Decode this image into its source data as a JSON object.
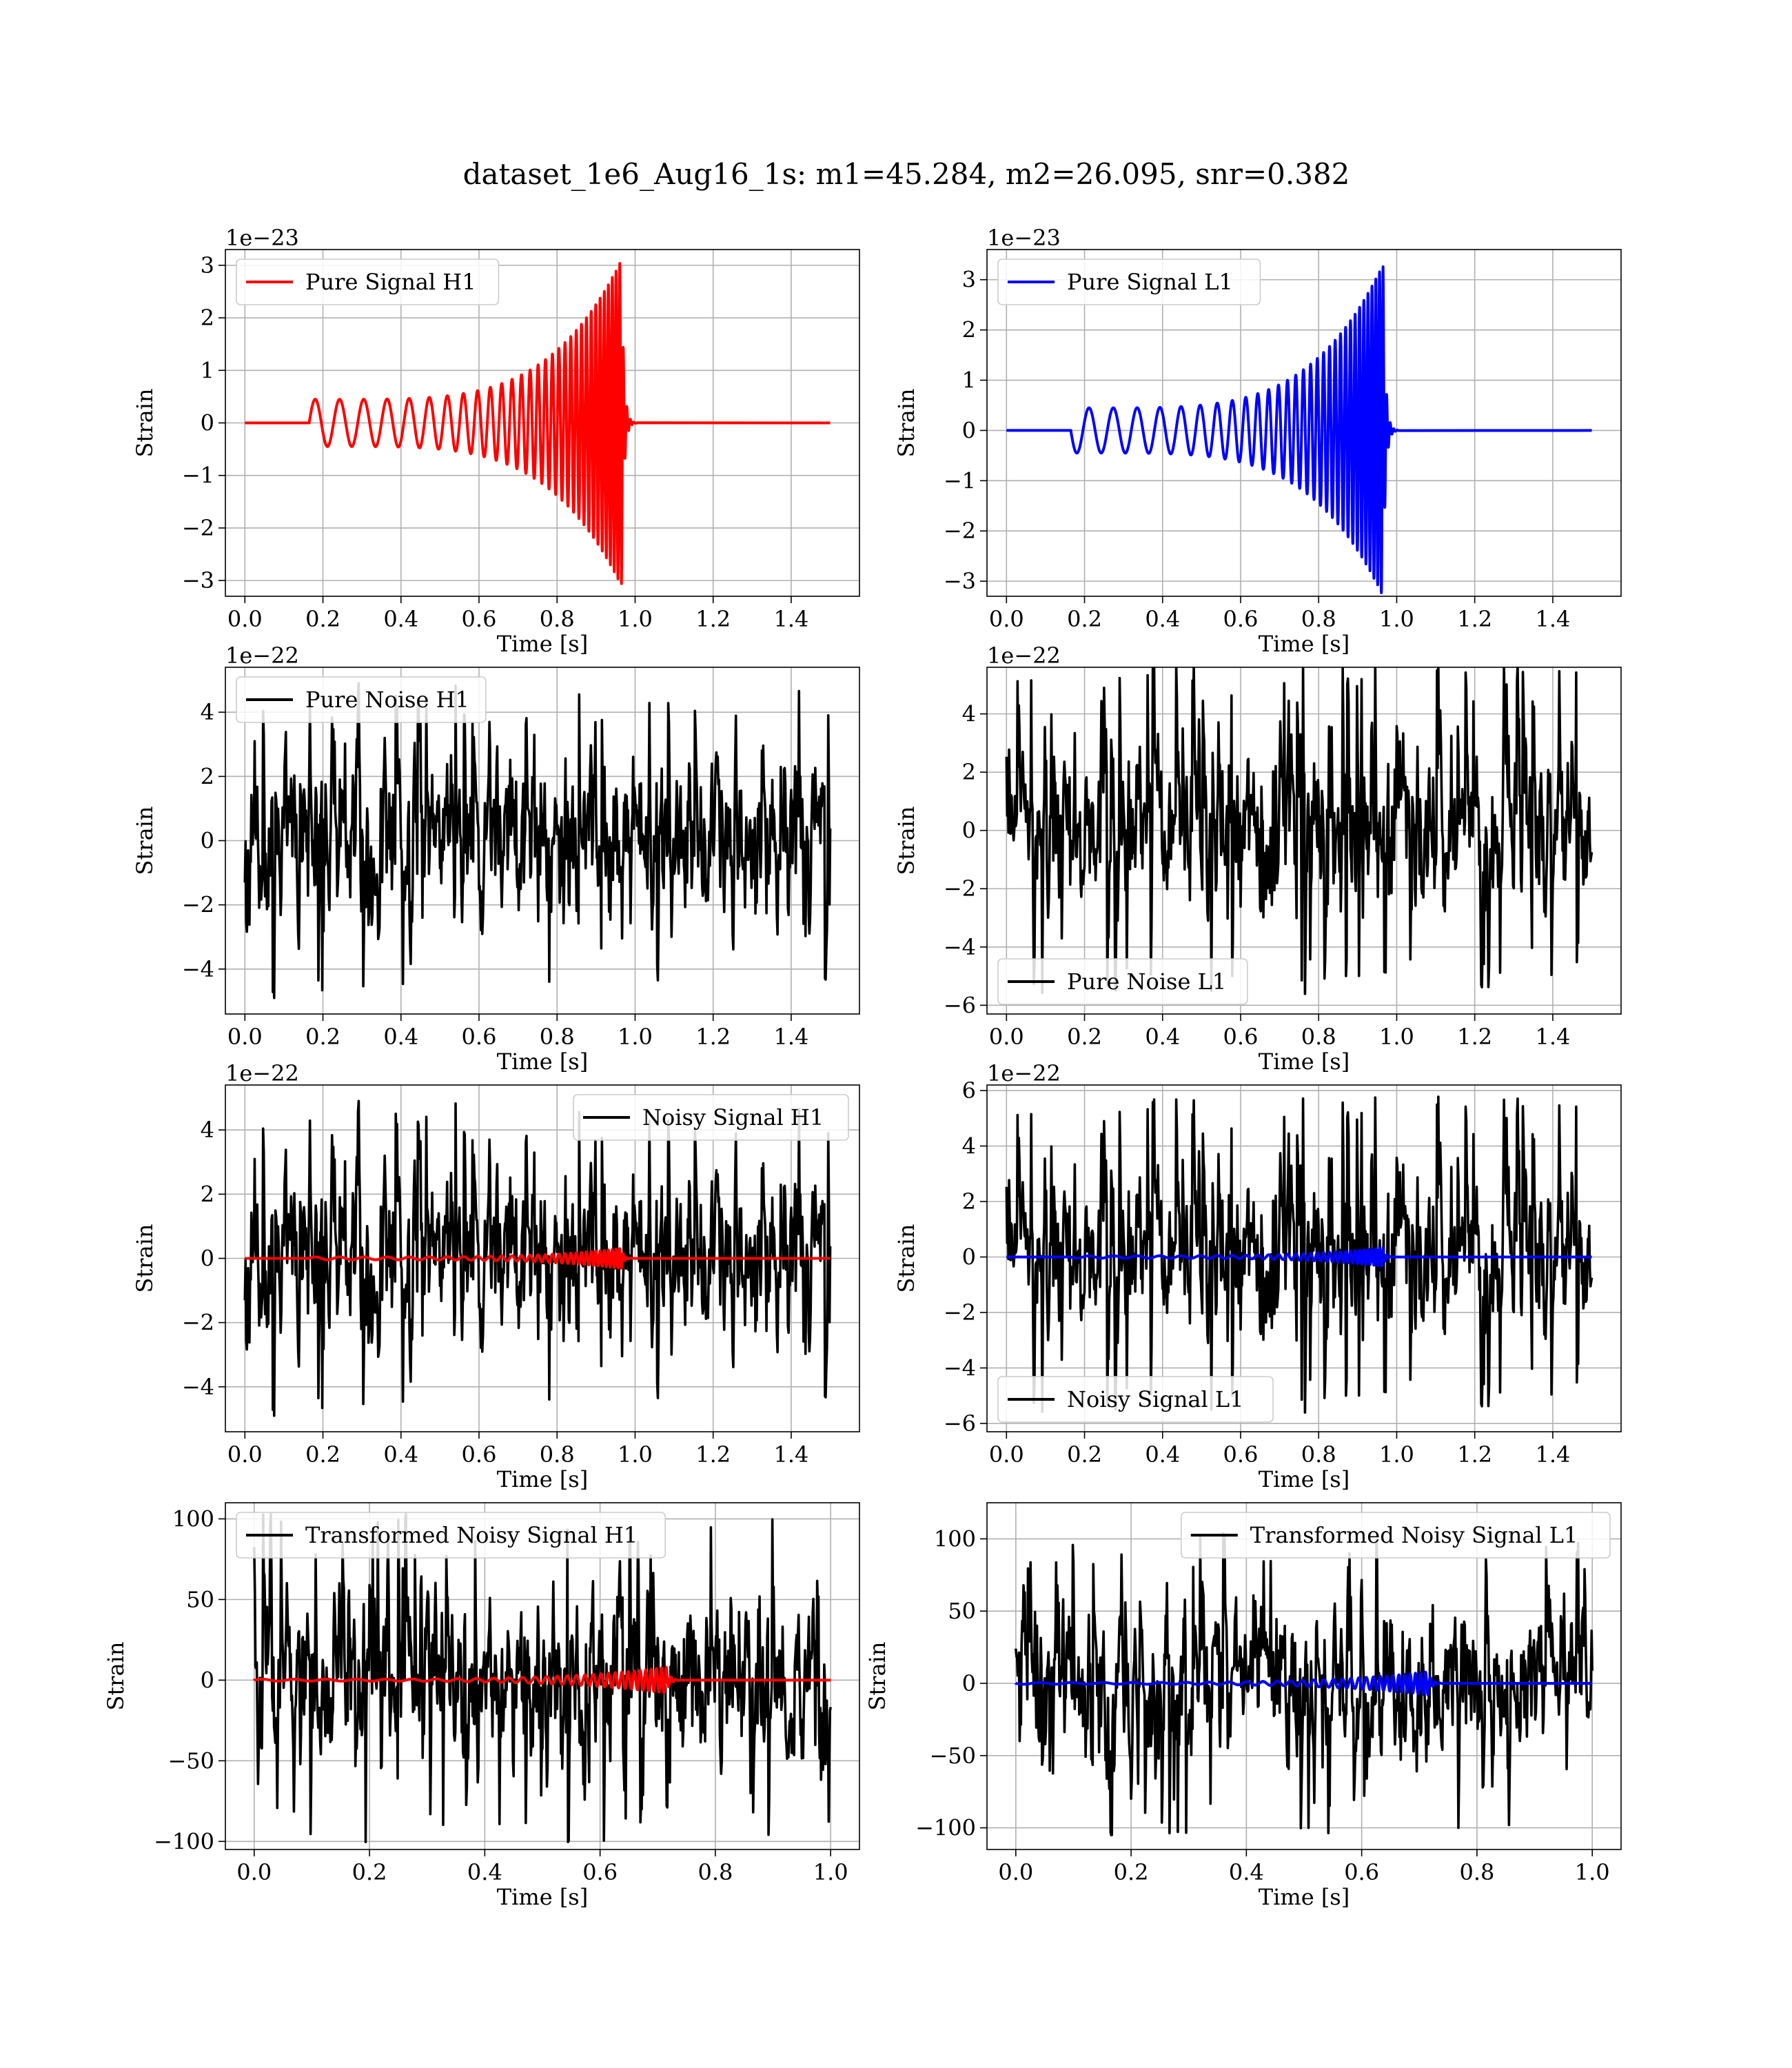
{
  "figure": {
    "title": "dataset_1e6_Aug16_1s: m1=45.284, m2=26.095, snr=0.382"
  },
  "colors": {
    "h1_signal": "#ff0000",
    "l1_signal": "#0000ff",
    "noise": "#000000",
    "grid": "#b0b0b0"
  },
  "chart_data": [
    {
      "id": "pure-signal-h1",
      "type": "line",
      "xlabel": "Time [s]",
      "ylabel": "Strain",
      "offset_text": "1e−23",
      "xlim": [
        -0.05,
        1.575
      ],
      "ylim": [
        -3.3,
        3.3
      ],
      "xticks": [
        0.0,
        0.2,
        0.4,
        0.6,
        0.8,
        1.0,
        1.2,
        1.4
      ],
      "xtick_labels": [
        "0.0",
        "0.2",
        "0.4",
        "0.6",
        "0.8",
        "1.0",
        "1.2",
        "1.4"
      ],
      "yticks": [
        -3,
        -2,
        -1,
        0,
        1,
        2,
        3
      ],
      "ytick_labels": [
        "−3",
        "−2",
        "−1",
        "0",
        "1",
        "2",
        "3"
      ],
      "legend_position": "upper left",
      "series": [
        {
          "name": "Pure Signal H1",
          "color": "#ff0000",
          "kind": "chirp",
          "params": {
            "t_start": 0.165,
            "t_merge": 0.965,
            "t_end": 1.5,
            "f0": 16,
            "f1": 110,
            "amp0": 0.45,
            "amp1": 3.1,
            "polarity": 1
          }
        }
      ]
    },
    {
      "id": "pure-signal-l1",
      "type": "line",
      "xlabel": "Time [s]",
      "ylabel": "Strain",
      "offset_text": "1e−23",
      "xlim": [
        -0.05,
        1.575
      ],
      "ylim": [
        -3.3,
        3.6
      ],
      "xticks": [
        0.0,
        0.2,
        0.4,
        0.6,
        0.8,
        1.0,
        1.2,
        1.4
      ],
      "xtick_labels": [
        "0.0",
        "0.2",
        "0.4",
        "0.6",
        "0.8",
        "1.0",
        "1.2",
        "1.4"
      ],
      "yticks": [
        -3,
        -2,
        -1,
        0,
        1,
        2,
        3
      ],
      "ytick_labels": [
        "−3",
        "−2",
        "−1",
        "0",
        "1",
        "2",
        "3"
      ],
      "legend_position": "upper left",
      "series": [
        {
          "name": "Pure Signal L1",
          "color": "#0000ff",
          "kind": "chirp",
          "params": {
            "t_start": 0.165,
            "t_merge": 0.965,
            "t_end": 1.5,
            "f0": 16,
            "f1": 110,
            "amp0": 0.45,
            "amp1": 3.3,
            "polarity": -1
          }
        }
      ]
    },
    {
      "id": "pure-noise-h1",
      "type": "line",
      "xlabel": "Time [s]",
      "ylabel": "Strain",
      "offset_text": "1e−22",
      "xlim": [
        -0.05,
        1.575
      ],
      "ylim": [
        -5.4,
        5.4
      ],
      "xticks": [
        0.0,
        0.2,
        0.4,
        0.6,
        0.8,
        1.0,
        1.2,
        1.4
      ],
      "xtick_labels": [
        "0.0",
        "0.2",
        "0.4",
        "0.6",
        "0.8",
        "1.0",
        "1.2",
        "1.4"
      ],
      "yticks": [
        -4,
        -2,
        0,
        2,
        4
      ],
      "ytick_labels": [
        "−4",
        "−2",
        "0",
        "2",
        "4"
      ],
      "legend_position": "upper left",
      "series": [
        {
          "name": "Pure Noise H1",
          "color": "#000000",
          "kind": "noise",
          "params": {
            "t0": 0.0,
            "t1": 1.5,
            "sigma": 1.35,
            "peak": 4.9,
            "seed": 11
          }
        }
      ]
    },
    {
      "id": "pure-noise-l1",
      "type": "line",
      "xlabel": "Time [s]",
      "ylabel": "Strain",
      "offset_text": "1e−22",
      "xlim": [
        -0.05,
        1.575
      ],
      "ylim": [
        -6.3,
        5.6
      ],
      "xticks": [
        0.0,
        0.2,
        0.4,
        0.6,
        0.8,
        1.0,
        1.2,
        1.4
      ],
      "xtick_labels": [
        "0.0",
        "0.2",
        "0.4",
        "0.6",
        "0.8",
        "1.0",
        "1.2",
        "1.4"
      ],
      "yticks": [
        -6,
        -4,
        -2,
        0,
        2,
        4
      ],
      "ytick_labels": [
        "−6",
        "−4",
        "−2",
        "0",
        "2",
        "4"
      ],
      "legend_position": "lower left",
      "series": [
        {
          "name": "Pure Noise L1",
          "color": "#000000",
          "kind": "noise",
          "params": {
            "t0": 0.0,
            "t1": 1.5,
            "sigma": 1.5,
            "peak": 5.8,
            "seed": 23
          }
        }
      ]
    },
    {
      "id": "noisy-signal-h1",
      "type": "line",
      "xlabel": "Time [s]",
      "ylabel": "Strain",
      "offset_text": "1e−22",
      "xlim": [
        -0.05,
        1.575
      ],
      "ylim": [
        -5.4,
        5.4
      ],
      "xticks": [
        0.0,
        0.2,
        0.4,
        0.6,
        0.8,
        1.0,
        1.2,
        1.4
      ],
      "xtick_labels": [
        "0.0",
        "0.2",
        "0.4",
        "0.6",
        "0.8",
        "1.0",
        "1.2",
        "1.4"
      ],
      "yticks": [
        -4,
        -2,
        0,
        2,
        4
      ],
      "ytick_labels": [
        "−4",
        "−2",
        "0",
        "2",
        "4"
      ],
      "legend_position": "upper right",
      "series": [
        {
          "name": "Noisy Signal H1",
          "color": "#000000",
          "kind": "noise",
          "params": {
            "t0": 0.0,
            "t1": 1.5,
            "sigma": 1.35,
            "peak": 4.9,
            "seed": 11
          }
        },
        {
          "color": "#ff0000",
          "kind": "chirp",
          "params": {
            "t_start": 0.165,
            "t_merge": 0.965,
            "t_end": 1.5,
            "f0": 16,
            "f1": 110,
            "amp0": 0.045,
            "amp1": 0.31,
            "polarity": 1
          }
        }
      ]
    },
    {
      "id": "noisy-signal-l1",
      "type": "line",
      "xlabel": "Time [s]",
      "ylabel": "Strain",
      "offset_text": "1e−22",
      "xlim": [
        -0.05,
        1.575
      ],
      "ylim": [
        -6.3,
        6.2
      ],
      "xticks": [
        0.0,
        0.2,
        0.4,
        0.6,
        0.8,
        1.0,
        1.2,
        1.4
      ],
      "xtick_labels": [
        "0.0",
        "0.2",
        "0.4",
        "0.6",
        "0.8",
        "1.0",
        "1.2",
        "1.4"
      ],
      "yticks": [
        -6,
        -4,
        -2,
        0,
        2,
        4,
        6
      ],
      "ytick_labels": [
        "−6",
        "−4",
        "−2",
        "0",
        "2",
        "4",
        "6"
      ],
      "legend_position": "lower left",
      "series": [
        {
          "name": "Noisy Signal L1",
          "color": "#000000",
          "kind": "noise",
          "params": {
            "t0": 0.0,
            "t1": 1.5,
            "sigma": 1.5,
            "peak": 5.8,
            "seed": 23
          }
        },
        {
          "color": "#0000ff",
          "kind": "chirp",
          "params": {
            "t_start": 0.165,
            "t_merge": 0.965,
            "t_end": 1.5,
            "f0": 16,
            "f1": 110,
            "amp0": 0.045,
            "amp1": 0.33,
            "polarity": -1
          }
        }
      ]
    },
    {
      "id": "transformed-noisy-signal-h1",
      "type": "line",
      "xlabel": "Time [s]",
      "ylabel": "Strain",
      "offset_text": "",
      "xlim": [
        -0.05,
        1.05
      ],
      "ylim": [
        -105,
        110
      ],
      "xticks": [
        0.0,
        0.2,
        0.4,
        0.6,
        0.8,
        1.0
      ],
      "xtick_labels": [
        "0.0",
        "0.2",
        "0.4",
        "0.6",
        "0.8",
        "1.0"
      ],
      "yticks": [
        -100,
        -50,
        0,
        50,
        100
      ],
      "ytick_labels": [
        "−100",
        "−50",
        "0",
        "50",
        "100"
      ],
      "legend_position": "upper left",
      "series": [
        {
          "name": "Transformed Noisy Signal H1",
          "color": "#000000",
          "kind": "noise",
          "params": {
            "t0": 0.0,
            "t1": 1.0,
            "sigma": 28,
            "peak": 103,
            "seed": 37
          }
        },
        {
          "color": "#ff0000",
          "kind": "chirp",
          "params": {
            "t_start": 0.0,
            "t_merge": 0.715,
            "t_end": 1.0,
            "f0": 18,
            "f1": 120,
            "amp0": 0.6,
            "amp1": 8,
            "polarity": 1
          }
        }
      ]
    },
    {
      "id": "transformed-noisy-signal-l1",
      "type": "line",
      "xlabel": "Time [s]",
      "ylabel": "Strain",
      "offset_text": "",
      "xlim": [
        -0.05,
        1.05
      ],
      "ylim": [
        -115,
        125
      ],
      "xticks": [
        0.0,
        0.2,
        0.4,
        0.6,
        0.8,
        1.0
      ],
      "xtick_labels": [
        "0.0",
        "0.2",
        "0.4",
        "0.6",
        "0.8",
        "1.0"
      ],
      "yticks": [
        -100,
        -50,
        0,
        50,
        100
      ],
      "ytick_labels": [
        "−100",
        "−50",
        "0",
        "50",
        "100"
      ],
      "legend_position": "upper right",
      "series": [
        {
          "name": "Transformed Noisy Signal L1",
          "color": "#000000",
          "kind": "noise",
          "params": {
            "t0": 0.0,
            "t1": 1.0,
            "sigma": 28,
            "peak": 105,
            "seed": 53
          }
        },
        {
          "color": "#0000ff",
          "kind": "chirp",
          "params": {
            "t_start": 0.0,
            "t_merge": 0.715,
            "t_end": 1.0,
            "f0": 18,
            "f1": 120,
            "amp0": 0.6,
            "amp1": 8,
            "polarity": -1
          }
        }
      ]
    }
  ]
}
